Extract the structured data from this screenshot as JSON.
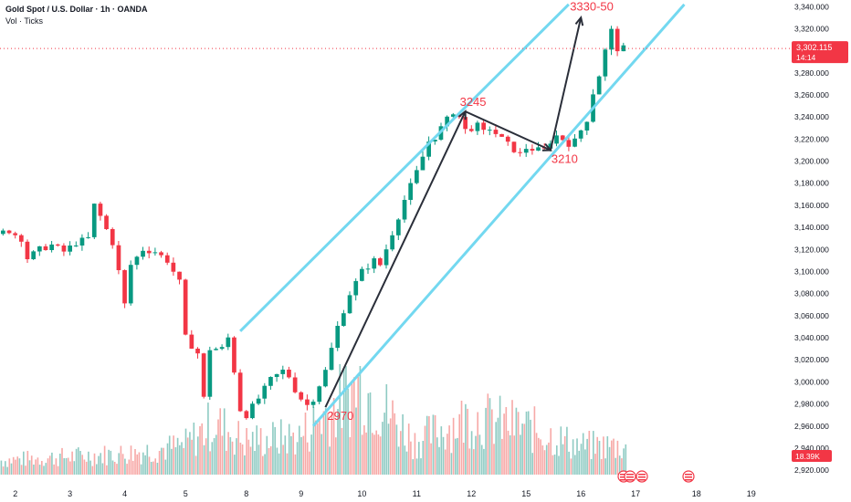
{
  "legend": {
    "title": "Gold Spot / U.S. Dollar · 1h · OANDA",
    "volume_label": "Vol · Ticks"
  },
  "price_badge": {
    "price": "3,302.115",
    "countdown": "14:14",
    "color": "#f23645"
  },
  "volume_badge": {
    "value": "18.39K",
    "color": "#f23645"
  },
  "colors": {
    "up": "#089981",
    "down": "#f23645",
    "vol_up": "#8fcbc3",
    "vol_down": "#f7a9a7",
    "channel": "#73d8f0",
    "arrow": "#2a2e39",
    "annotation": "#f23645",
    "grid": "#f0f3fa",
    "axis_text": "#131722"
  },
  "chart_data": {
    "type": "candlestick",
    "title": "Gold Spot / U.S. Dollar · 1h · OANDA",
    "y_axis": {
      "ticks": [
        "3,340.000",
        "3,320.000",
        "3,300.000",
        "3,280.000",
        "3,260.000",
        "3,240.000",
        "3,220.000",
        "3,200.000",
        "3,180.000",
        "3,160.000",
        "3,140.000",
        "3,120.000",
        "3,100.000",
        "3,080.000",
        "3,060.000",
        "3,040.000",
        "3,020.000",
        "3,000.000",
        "2,980.000",
        "2,960.000",
        "2,940.000",
        "2,920.000"
      ],
      "tick_values": [
        3340,
        3320,
        3300,
        3280,
        3260,
        3240,
        3220,
        3200,
        3180,
        3160,
        3140,
        3120,
        3100,
        3080,
        3060,
        3040,
        3020,
        3000,
        2980,
        2960,
        2940,
        2920
      ],
      "range": [
        2916,
        3346
      ]
    },
    "x_axis": {
      "labels": [
        "2",
        "3",
        "4",
        "5",
        "8",
        "9",
        "10",
        "11",
        "12",
        "15",
        "16",
        "17",
        "18",
        "19"
      ],
      "label_index": [
        2,
        11,
        20,
        30,
        40,
        49,
        59,
        68,
        77,
        86,
        95,
        104,
        114,
        123
      ]
    },
    "last_price": 3302.115,
    "price_path": [
      [
        0,
        3134
      ],
      [
        2,
        3137
      ],
      [
        4,
        3130
      ],
      [
        5,
        3112
      ],
      [
        7,
        3120
      ],
      [
        9,
        3124
      ],
      [
        11,
        3118
      ],
      [
        13,
        3126
      ],
      [
        15,
        3130
      ],
      [
        16,
        3160
      ],
      [
        17,
        3150
      ],
      [
        19,
        3126
      ],
      [
        20,
        3100
      ],
      [
        21,
        3070
      ],
      [
        22,
        3106
      ],
      [
        24,
        3120
      ],
      [
        26,
        3118
      ],
      [
        28,
        3110
      ],
      [
        30,
        3090
      ],
      [
        31,
        3040
      ],
      [
        33,
        3026
      ],
      [
        34,
        2985
      ],
      [
        35,
        3030
      ],
      [
        37,
        3030
      ],
      [
        38,
        3040
      ],
      [
        39,
        3010
      ],
      [
        40,
        2975
      ],
      [
        41,
        2970
      ],
      [
        43,
        2985
      ],
      [
        45,
        3002
      ],
      [
        47,
        3010
      ],
      [
        48,
        3005
      ],
      [
        49,
        2993
      ],
      [
        50,
        2985
      ],
      [
        51,
        2979
      ],
      [
        52,
        2985
      ],
      [
        54,
        3010
      ],
      [
        56,
        3050
      ],
      [
        58,
        3080
      ],
      [
        60,
        3100
      ],
      [
        62,
        3110
      ],
      [
        63,
        3106
      ],
      [
        65,
        3135
      ],
      [
        67,
        3165
      ],
      [
        69,
        3190
      ],
      [
        71,
        3218
      ],
      [
        72,
        3222
      ],
      [
        73,
        3230
      ],
      [
        75,
        3245
      ],
      [
        76,
        3240
      ],
      [
        77,
        3228
      ],
      [
        79,
        3232
      ],
      [
        80,
        3226
      ],
      [
        81,
        3230
      ],
      [
        82,
        3225
      ],
      [
        84,
        3215
      ],
      [
        86,
        3206
      ],
      [
        87,
        3212
      ],
      [
        89,
        3210
      ],
      [
        90,
        3210
      ],
      [
        91,
        3218
      ],
      [
        92,
        3223
      ],
      [
        93,
        3220
      ],
      [
        94,
        3216
      ],
      [
        95,
        3218
      ],
      [
        96,
        3228
      ],
      [
        97,
        3238
      ],
      [
        98,
        3262
      ],
      [
        99,
        3278
      ],
      [
        100,
        3300
      ],
      [
        101,
        3318
      ],
      [
        102,
        3302
      ]
    ],
    "volume_path": [
      [
        0,
        0.15
      ],
      [
        20,
        0.22
      ],
      [
        30,
        0.3
      ],
      [
        35,
        0.55
      ],
      [
        40,
        0.35
      ],
      [
        49,
        0.4
      ],
      [
        59,
        0.95
      ],
      [
        68,
        0.35
      ],
      [
        77,
        0.6
      ],
      [
        86,
        0.5
      ],
      [
        95,
        0.3
      ],
      [
        102,
        0.3
      ]
    ],
    "annotations": [
      {
        "label": "2970",
        "value": 2970
      },
      {
        "label": "3245",
        "value": 3245
      },
      {
        "label": "3210",
        "value": 3210
      },
      {
        "label": "3330-50",
        "value": 3330
      }
    ],
    "arrow_path": [
      [
        53,
        2977
      ],
      [
        76,
        3245
      ],
      [
        90,
        3210
      ],
      [
        95,
        3330
      ]
    ],
    "channel_upper": [
      [
        39,
        3046
      ],
      [
        93,
        3342
      ]
    ],
    "channel_lower": [
      [
        51,
        2960
      ],
      [
        112,
        3342
      ]
    ],
    "grid": false,
    "legend": "top-left"
  }
}
